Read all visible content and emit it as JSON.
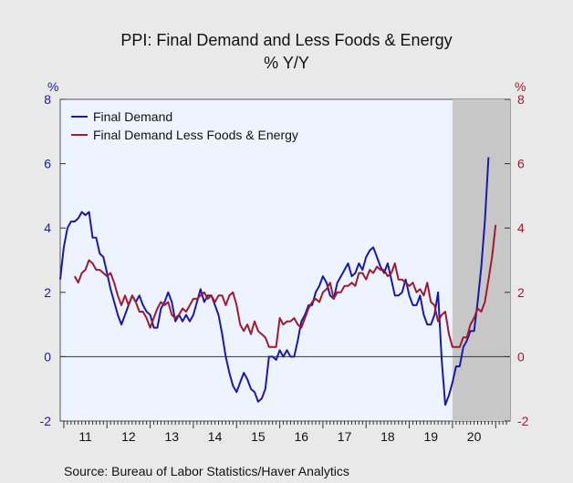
{
  "chart_data": {
    "type": "line",
    "title": "PPI: Final Demand and Less Foods & Energy",
    "subtitle": "% Y/Y",
    "left_unit": "%",
    "right_unit": "%",
    "ylim": [
      -2,
      8
    ],
    "yticks": [
      -2,
      0,
      2,
      4,
      6,
      8
    ],
    "xlim": [
      2010.917,
      2021.333
    ],
    "year_ticks": [
      2011,
      2012,
      2013,
      2014,
      2015,
      2016,
      2017,
      2018,
      2019,
      2020,
      2021
    ],
    "year_labels": [
      "11",
      "12",
      "13",
      "14",
      "15",
      "16",
      "17",
      "18",
      "19",
      "20"
    ],
    "zero_line": true,
    "recession_shade": [
      2020.0,
      2021.333
    ],
    "legend_position": "top-left",
    "source": "Source:  Bureau of Labor Statistics/Haver Analytics",
    "series": [
      {
        "name": "Final Demand",
        "color": "#1a1aa6",
        "start": 2010.917,
        "values": [
          2.4,
          3.4,
          4.0,
          4.2,
          4.2,
          4.3,
          4.5,
          4.4,
          4.5,
          3.7,
          3.7,
          3.2,
          3.1,
          2.6,
          2.1,
          1.7,
          1.3,
          1.0,
          1.3,
          1.6,
          1.9,
          1.7,
          1.9,
          1.6,
          1.4,
          1.3,
          0.9,
          0.9,
          1.5,
          1.7,
          2.0,
          1.7,
          1.1,
          1.3,
          1.1,
          1.3,
          1.1,
          1.3,
          1.7,
          2.1,
          1.7,
          1.9,
          1.9,
          1.6,
          1.3,
          0.7,
          0.0,
          -0.5,
          -0.9,
          -1.1,
          -0.8,
          -0.5,
          -0.7,
          -1.0,
          -1.1,
          -1.4,
          -1.3,
          -1.0,
          0.0,
          0.0,
          -0.1,
          0.2,
          0.0,
          0.2,
          0.0,
          0.0,
          0.5,
          1.1,
          1.3,
          1.6,
          1.6,
          2.0,
          2.2,
          2.5,
          2.3,
          1.9,
          1.8,
          2.3,
          2.5,
          2.7,
          2.9,
          2.5,
          2.6,
          2.9,
          2.7,
          3.1,
          3.3,
          3.4,
          3.1,
          2.8,
          2.6,
          2.9,
          2.4,
          1.9,
          1.9,
          2.0,
          2.4,
          1.9,
          1.6,
          1.6,
          1.9,
          1.3,
          1.0,
          1.0,
          1.3,
          2.0,
          -0.1,
          -1.5,
          -1.2,
          -0.8,
          -0.3,
          -0.3,
          0.3,
          0.5,
          0.8,
          0.8,
          1.7,
          2.8,
          4.2,
          6.2
        ]
      },
      {
        "name": "Final Demand Less Foods & Energy",
        "color": "#a01a30",
        "start": 2011.25,
        "values": [
          2.5,
          2.3,
          2.6,
          2.7,
          3.0,
          2.9,
          2.7,
          2.7,
          2.6,
          2.5,
          2.6,
          2.3,
          1.9,
          1.6,
          1.9,
          1.6,
          1.9,
          1.7,
          1.4,
          1.4,
          1.2,
          0.9,
          1.2,
          1.5,
          1.7,
          1.6,
          1.7,
          1.3,
          1.2,
          1.3,
          1.5,
          1.4,
          1.6,
          1.8,
          1.8,
          1.9,
          2.0,
          1.8,
          1.9,
          1.7,
          1.9,
          1.9,
          1.6,
          1.9,
          2.0,
          1.6,
          1.0,
          0.8,
          1.0,
          0.7,
          1.1,
          0.8,
          0.7,
          0.6,
          0.3,
          0.3,
          0.3,
          1.2,
          1.0,
          1.1,
          1.1,
          1.2,
          1.0,
          0.9,
          1.2,
          1.5,
          1.7,
          1.8,
          1.7,
          2.0,
          2.1,
          2.3,
          1.8,
          2.0,
          2.0,
          2.2,
          2.2,
          2.3,
          2.2,
          2.6,
          2.6,
          2.4,
          2.7,
          2.6,
          2.8,
          2.7,
          2.7,
          2.5,
          2.6,
          2.9,
          2.4,
          2.4,
          2.3,
          2.2,
          2.3,
          2.0,
          2.1,
          1.9,
          2.3,
          1.7,
          1.6,
          1.1,
          1.3,
          1.4,
          0.7,
          0.3,
          0.3,
          0.3,
          0.6,
          0.6,
          1.0,
          1.2,
          1.5,
          1.4,
          1.7,
          2.4,
          3.1,
          4.1
        ]
      }
    ]
  }
}
